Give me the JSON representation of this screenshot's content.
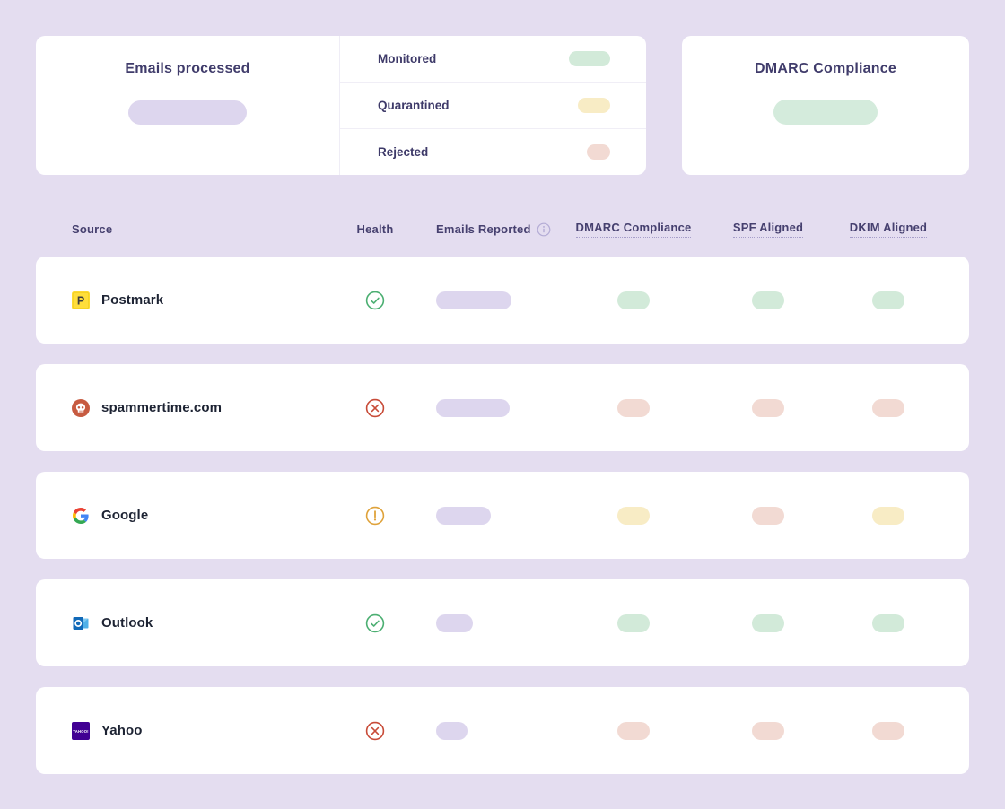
{
  "summary": {
    "emails_processed_title": "Emails processed",
    "legend": [
      {
        "label": "Monitored",
        "status": "success",
        "pill_width": 46
      },
      {
        "label": "Quarantined",
        "status": "warning",
        "pill_width": 36
      },
      {
        "label": "Rejected",
        "status": "danger",
        "pill_width": 26
      }
    ],
    "dmarc_title": "DMARC Compliance"
  },
  "table": {
    "columns": [
      {
        "label": "Source"
      },
      {
        "label": "Health"
      },
      {
        "label": "Emails Reported",
        "info_icon": true
      },
      {
        "label": "DMARC Compliance",
        "underlined": true
      },
      {
        "label": "SPF Aligned",
        "underlined": true
      },
      {
        "label": "DKIM Aligned",
        "underlined": true
      }
    ],
    "rows": [
      {
        "source": "Postmark",
        "icon": "postmark-icon",
        "health": "pass",
        "emails_reported_width": 84,
        "dmarc_compliance": "success",
        "spf_aligned": "success",
        "dkim_aligned": "success"
      },
      {
        "source": "spammertime.com",
        "icon": "spammertime-icon",
        "health": "fail",
        "emails_reported_width": 82,
        "dmarc_compliance": "danger",
        "spf_aligned": "danger",
        "dkim_aligned": "danger"
      },
      {
        "source": "Google",
        "icon": "google-icon",
        "health": "warn",
        "emails_reported_width": 61,
        "dmarc_compliance": "warning",
        "spf_aligned": "danger",
        "dkim_aligned": "warning"
      },
      {
        "source": "Outlook",
        "icon": "outlook-icon",
        "health": "pass",
        "emails_reported_width": 41,
        "dmarc_compliance": "success",
        "spf_aligned": "success",
        "dkim_aligned": "success"
      },
      {
        "source": "Yahoo",
        "icon": "yahoo-icon",
        "health": "fail",
        "emails_reported_width": 35,
        "dmarc_compliance": "danger",
        "spf_aligned": "danger",
        "dkim_aligned": "danger"
      }
    ]
  },
  "colors": {
    "page_background": "#e4ddf0",
    "accent_purple_pill": "#ddd6ee",
    "success_pill": "#d2ead9",
    "warning_pill": "#f8ecc5",
    "danger_pill": "#f2dad3",
    "health_pass": "#4caf72",
    "health_warn": "#dfa23a",
    "health_fail": "#c84b38"
  }
}
